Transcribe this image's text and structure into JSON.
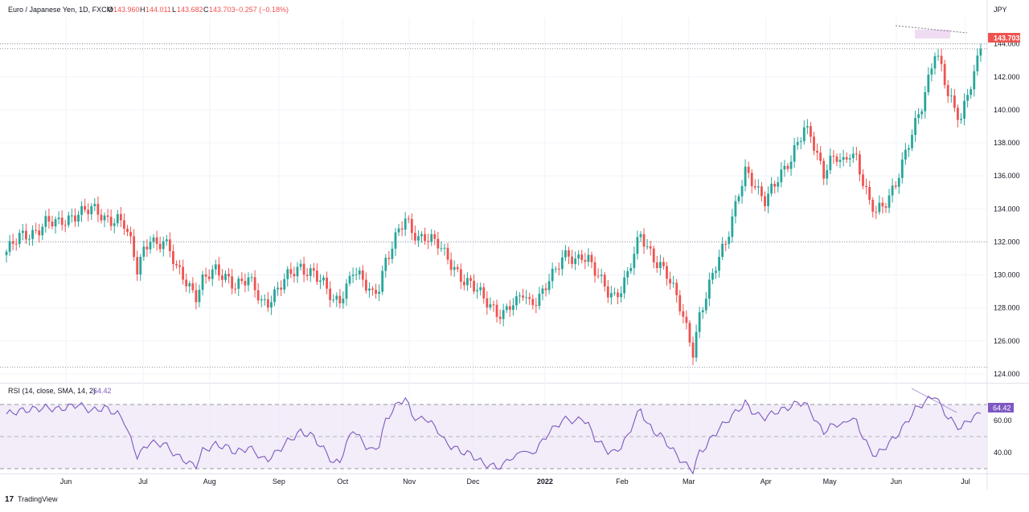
{
  "header": {
    "symbol_name": "Euro / Japanese Yen, 1D, FXCM",
    "open_label": "O",
    "open": "143.960",
    "high_label": "H",
    "high": "144.011",
    "low_label": "L",
    "low": "143.682",
    "close_label": "C",
    "close": "143.703",
    "change": "−0.257 (−0.18%)"
  },
  "rsi_header": {
    "label": "RSI (14, close, SMA, 14, 2)",
    "value": "64.42"
  },
  "currency": "JPY",
  "last_price_tag": "143.703",
  "rsi_value_tag": "64.42",
  "branding": {
    "text": "TradingView"
  },
  "colors": {
    "up": "#26a69a",
    "down": "#ef5350",
    "rsi_line": "#7e57c2",
    "rsi_band": "#ede7f6",
    "price_tag": "#ef5350",
    "rsi_tag": "#7e57c2",
    "grid": "#f0f3fa",
    "text": "#131722",
    "muted": "#787b86"
  },
  "chart_data": [
    {
      "type": "candlestick",
      "title": "Euro / Japanese Yen, 1D, FXCM",
      "ylabel": "JPY",
      "ylim": [
        123.8,
        145.2
      ],
      "yticks": [
        124,
        126,
        128,
        130,
        132,
        134,
        136,
        138,
        140,
        142,
        144
      ],
      "ytick_labels": [
        "124.000",
        "126.000",
        "128.000",
        "130.000",
        "132.000",
        "134.000",
        "136.000",
        "138.000",
        "140.000",
        "142.000",
        "144.000"
      ],
      "x_tick_labels": [
        "Jun",
        "Jul",
        "Aug",
        "Sep",
        "Oct",
        "Nov",
        "Dec",
        "2022",
        "Feb",
        "Mar",
        "Apr",
        "May",
        "Jun",
        "Jul"
      ],
      "x_tick_bold": [
        false,
        false,
        false,
        false,
        false,
        false,
        false,
        true,
        false,
        false,
        false,
        false,
        false,
        false
      ],
      "last_close": 143.703,
      "horizontal_levels": [
        144.0,
        143.703,
        132.0,
        124.4
      ],
      "close_path": [
        [
          0,
          131.4
        ],
        [
          4,
          132.2
        ],
        [
          8,
          132.6
        ],
        [
          12,
          133.2
        ],
        [
          16,
          133.0
        ],
        [
          20,
          133.6
        ],
        [
          22,
          133.9
        ],
        [
          26,
          133.9
        ],
        [
          30,
          133.4
        ],
        [
          34,
          133.5
        ],
        [
          36,
          133.1
        ],
        [
          38,
          131.8
        ],
        [
          40,
          130.2
        ],
        [
          42,
          131.5
        ],
        [
          44,
          132.4
        ],
        [
          46,
          131.9
        ],
        [
          48,
          132.0
        ],
        [
          50,
          131.3
        ],
        [
          52,
          130.3
        ],
        [
          54,
          130.0
        ],
        [
          56,
          129.4
        ],
        [
          58,
          128.8
        ],
        [
          60,
          129.6
        ],
        [
          64,
          130.2
        ],
        [
          68,
          129.9
        ],
        [
          70,
          129.4
        ],
        [
          74,
          129.6
        ],
        [
          76,
          129.1
        ],
        [
          78,
          128.4
        ],
        [
          80,
          128.5
        ],
        [
          82,
          128.9
        ],
        [
          86,
          129.8
        ],
        [
          90,
          130.5
        ],
        [
          94,
          130.2
        ],
        [
          96,
          129.6
        ],
        [
          98,
          129.0
        ],
        [
          100,
          128.3
        ],
        [
          102,
          128.6
        ],
        [
          104,
          129.4
        ],
        [
          106,
          130.4
        ],
        [
          108,
          129.8
        ],
        [
          110,
          129.2
        ],
        [
          112,
          128.7
        ],
        [
          114,
          129.4
        ],
        [
          116,
          131.0
        ],
        [
          118,
          131.8
        ],
        [
          120,
          132.6
        ],
        [
          122,
          133.2
        ],
        [
          124,
          132.6
        ],
        [
          126,
          132.3
        ],
        [
          128,
          132.5
        ],
        [
          130,
          132.2
        ],
        [
          132,
          131.8
        ],
        [
          134,
          131.1
        ],
        [
          136,
          130.6
        ],
        [
          138,
          130.2
        ],
        [
          140,
          129.8
        ],
        [
          142,
          129.5
        ],
        [
          144,
          129.0
        ],
        [
          146,
          128.4
        ],
        [
          148,
          128.1
        ],
        [
          150,
          127.8
        ],
        [
          152,
          127.8
        ],
        [
          154,
          128.2
        ],
        [
          156,
          128.2
        ],
        [
          158,
          128.8
        ],
        [
          160,
          128.2
        ],
        [
          162,
          128.6
        ],
        [
          164,
          129.1
        ],
        [
          166,
          129.8
        ],
        [
          168,
          130.1
        ],
        [
          170,
          130.9
        ],
        [
          172,
          131.2
        ],
        [
          174,
          131.0
        ],
        [
          176,
          131.3
        ],
        [
          178,
          130.9
        ],
        [
          180,
          130.1
        ],
        [
          182,
          129.5
        ],
        [
          184,
          129.0
        ],
        [
          186,
          128.8
        ],
        [
          188,
          129.3
        ],
        [
          190,
          130.0
        ],
        [
          192,
          131.2
        ],
        [
          194,
          132.3
        ],
        [
          196,
          131.7
        ],
        [
          198,
          131.1
        ],
        [
          200,
          130.7
        ],
        [
          202,
          130.0
        ],
        [
          204,
          129.0
        ],
        [
          206,
          128.0
        ],
        [
          208,
          126.8
        ],
        [
          210,
          125.5
        ],
        [
          212,
          127.6
        ],
        [
          214,
          128.7
        ],
        [
          216,
          129.8
        ],
        [
          218,
          131.0
        ],
        [
          220,
          132.0
        ],
        [
          222,
          133.6
        ],
        [
          224,
          135.1
        ],
        [
          226,
          136.2
        ],
        [
          228,
          135.5
        ],
        [
          230,
          134.9
        ],
        [
          232,
          134.6
        ],
        [
          234,
          135.4
        ],
        [
          236,
          136.0
        ],
        [
          238,
          136.3
        ],
        [
          240,
          136.8
        ],
        [
          242,
          137.9
        ],
        [
          244,
          139.0
        ],
        [
          246,
          138.7
        ],
        [
          248,
          137.3
        ],
        [
          250,
          136.0
        ],
        [
          252,
          136.7
        ],
        [
          254,
          137.1
        ],
        [
          256,
          136.9
        ],
        [
          258,
          137.6
        ],
        [
          260,
          137.1
        ],
        [
          262,
          135.5
        ],
        [
          264,
          134.2
        ],
        [
          266,
          133.8
        ],
        [
          268,
          134.3
        ],
        [
          270,
          134.9
        ],
        [
          272,
          135.6
        ],
        [
          274,
          136.6
        ],
        [
          276,
          137.8
        ],
        [
          278,
          139.1
        ],
        [
          280,
          140.4
        ],
        [
          282,
          142.0
        ],
        [
          284,
          143.6
        ],
        [
          286,
          142.4
        ],
        [
          288,
          140.8
        ],
        [
          290,
          140.0
        ],
        [
          292,
          139.6
        ],
        [
          294,
          141.2
        ],
        [
          296,
          142.2
        ],
        [
          298,
          143.7
        ]
      ]
    },
    {
      "type": "line",
      "title": "RSI (14, close, SMA, 14, 2)",
      "series": [
        {
          "name": "RSI",
          "last_value": 64.42
        }
      ],
      "ylim": [
        28,
        82
      ],
      "yticks": [
        40,
        60
      ],
      "ytick_labels": [
        "40.00",
        "60.00"
      ],
      "band": [
        30,
        70
      ],
      "midline": 50,
      "x_tick_labels": [
        "Jun",
        "Jul",
        "Aug",
        "Sep",
        "Oct",
        "Nov",
        "Dec",
        "2022",
        "Feb",
        "Mar",
        "Apr",
        "May",
        "Jun",
        "Jul"
      ],
      "rsi_path": [
        [
          0,
          64
        ],
        [
          4,
          66
        ],
        [
          8,
          67
        ],
        [
          12,
          68
        ],
        [
          16,
          67
        ],
        [
          20,
          69
        ],
        [
          22,
          70
        ],
        [
          26,
          66
        ],
        [
          30,
          68
        ],
        [
          34,
          64
        ],
        [
          36,
          60
        ],
        [
          38,
          48
        ],
        [
          40,
          38
        ],
        [
          42,
          42
        ],
        [
          44,
          47
        ],
        [
          46,
          45
        ],
        [
          48,
          46
        ],
        [
          50,
          42
        ],
        [
          52,
          38
        ],
        [
          54,
          36
        ],
        [
          56,
          33
        ],
        [
          58,
          32
        ],
        [
          60,
          41
        ],
        [
          64,
          45
        ],
        [
          68,
          43
        ],
        [
          70,
          40
        ],
        [
          74,
          43
        ],
        [
          76,
          41
        ],
        [
          78,
          36
        ],
        [
          80,
          36
        ],
        [
          82,
          39
        ],
        [
          86,
          47
        ],
        [
          90,
          53
        ],
        [
          94,
          50
        ],
        [
          96,
          44
        ],
        [
          98,
          40
        ],
        [
          100,
          33
        ],
        [
          102,
          35
        ],
        [
          104,
          45
        ],
        [
          106,
          55
        ],
        [
          108,
          49
        ],
        [
          110,
          44
        ],
        [
          112,
          41
        ],
        [
          114,
          45
        ],
        [
          116,
          60
        ],
        [
          118,
          66
        ],
        [
          120,
          71
        ],
        [
          122,
          74
        ],
        [
          124,
          64
        ],
        [
          126,
          60
        ],
        [
          128,
          62
        ],
        [
          130,
          58
        ],
        [
          132,
          54
        ],
        [
          134,
          47
        ],
        [
          136,
          44
        ],
        [
          138,
          42
        ],
        [
          140,
          40
        ],
        [
          142,
          39
        ],
        [
          144,
          36
        ],
        [
          146,
          33
        ],
        [
          148,
          32
        ],
        [
          150,
          31
        ],
        [
          152,
          32
        ],
        [
          154,
          37
        ],
        [
          156,
          37
        ],
        [
          158,
          43
        ],
        [
          160,
          38
        ],
        [
          162,
          42
        ],
        [
          164,
          47
        ],
        [
          166,
          53
        ],
        [
          168,
          56
        ],
        [
          170,
          60
        ],
        [
          172,
          61
        ],
        [
          174,
          59
        ],
        [
          176,
          62
        ],
        [
          178,
          57
        ],
        [
          180,
          49
        ],
        [
          182,
          45
        ],
        [
          184,
          41
        ],
        [
          186,
          40
        ],
        [
          188,
          44
        ],
        [
          190,
          50
        ],
        [
          192,
          60
        ],
        [
          194,
          67
        ],
        [
          196,
          58
        ],
        [
          198,
          53
        ],
        [
          200,
          51
        ],
        [
          202,
          46
        ],
        [
          204,
          41
        ],
        [
          206,
          36
        ],
        [
          208,
          32
        ],
        [
          210,
          29
        ],
        [
          212,
          40
        ],
        [
          214,
          44
        ],
        [
          216,
          50
        ],
        [
          218,
          55
        ],
        [
          220,
          59
        ],
        [
          222,
          63
        ],
        [
          224,
          67
        ],
        [
          226,
          71
        ],
        [
          228,
          66
        ],
        [
          230,
          63
        ],
        [
          232,
          62
        ],
        [
          234,
          64
        ],
        [
          236,
          66
        ],
        [
          238,
          67
        ],
        [
          240,
          69
        ],
        [
          242,
          71
        ],
        [
          244,
          71
        ],
        [
          246,
          66
        ],
        [
          248,
          58
        ],
        [
          250,
          53
        ],
        [
          252,
          56
        ],
        [
          254,
          58
        ],
        [
          256,
          57
        ],
        [
          258,
          62
        ],
        [
          260,
          59
        ],
        [
          262,
          50
        ],
        [
          264,
          42
        ],
        [
          266,
          38
        ],
        [
          268,
          42
        ],
        [
          270,
          46
        ],
        [
          272,
          50
        ],
        [
          274,
          55
        ],
        [
          276,
          61
        ],
        [
          278,
          67
        ],
        [
          280,
          70
        ],
        [
          282,
          73
        ],
        [
          284,
          76
        ],
        [
          286,
          68
        ],
        [
          288,
          62
        ],
        [
          290,
          58
        ],
        [
          292,
          55
        ],
        [
          294,
          60
        ],
        [
          296,
          62
        ],
        [
          298,
          64.42
        ]
      ]
    }
  ]
}
